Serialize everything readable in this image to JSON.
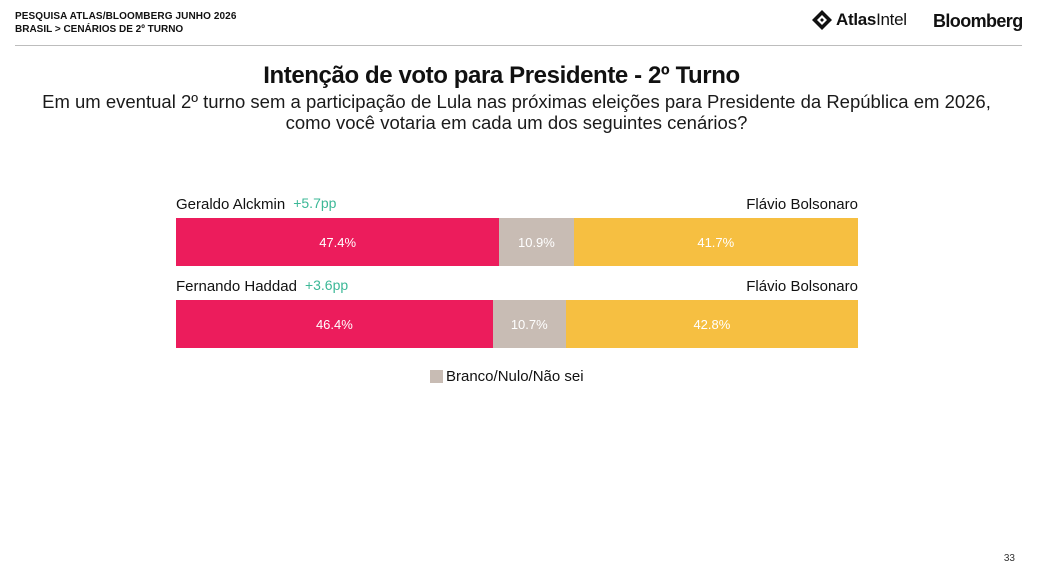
{
  "header": {
    "line1": "PESQUISA ATLAS/BLOOMBERG JUNHO 2026",
    "line2": "BRASIL > CENÁRIOS DE 2º TURNO",
    "logo_atlas_bold": "Atlas",
    "logo_atlas_rest": "Intel",
    "logo_bloomberg": "Bloomberg"
  },
  "title": "Intenção de voto para Presidente - 2º Turno",
  "subtitle": "Em um eventual 2º turno sem a participação de Lula nas próximas eleições para Presidente da República em 2026, como você votaria em cada um dos seguintes cenários?",
  "colors": {
    "left": "#ec1c5c",
    "middle": "#c8bcb4",
    "right": "#f6bf41",
    "pp": "#3cb897"
  },
  "chart_data": {
    "type": "bar",
    "stacked": true,
    "orientation": "horizontal",
    "rows": [
      {
        "left_name": "Geraldo Alckmin",
        "lead": "+5.7pp",
        "right_name": "Flávio Bolsonaro",
        "values": [
          47.4,
          10.9,
          41.7
        ],
        "labels": [
          "47.4%",
          "10.9%",
          "41.7%"
        ]
      },
      {
        "left_name": "Fernando Haddad",
        "lead": "+3.6pp",
        "right_name": "Flávio Bolsonaro",
        "values": [
          46.4,
          10.7,
          42.8
        ],
        "labels": [
          "46.4%",
          "10.7%",
          "42.8%"
        ]
      }
    ],
    "legend": [
      {
        "name": "Branco/Nulo/Não sei",
        "color": "#c8bcb4"
      }
    ]
  },
  "page_number": "33"
}
